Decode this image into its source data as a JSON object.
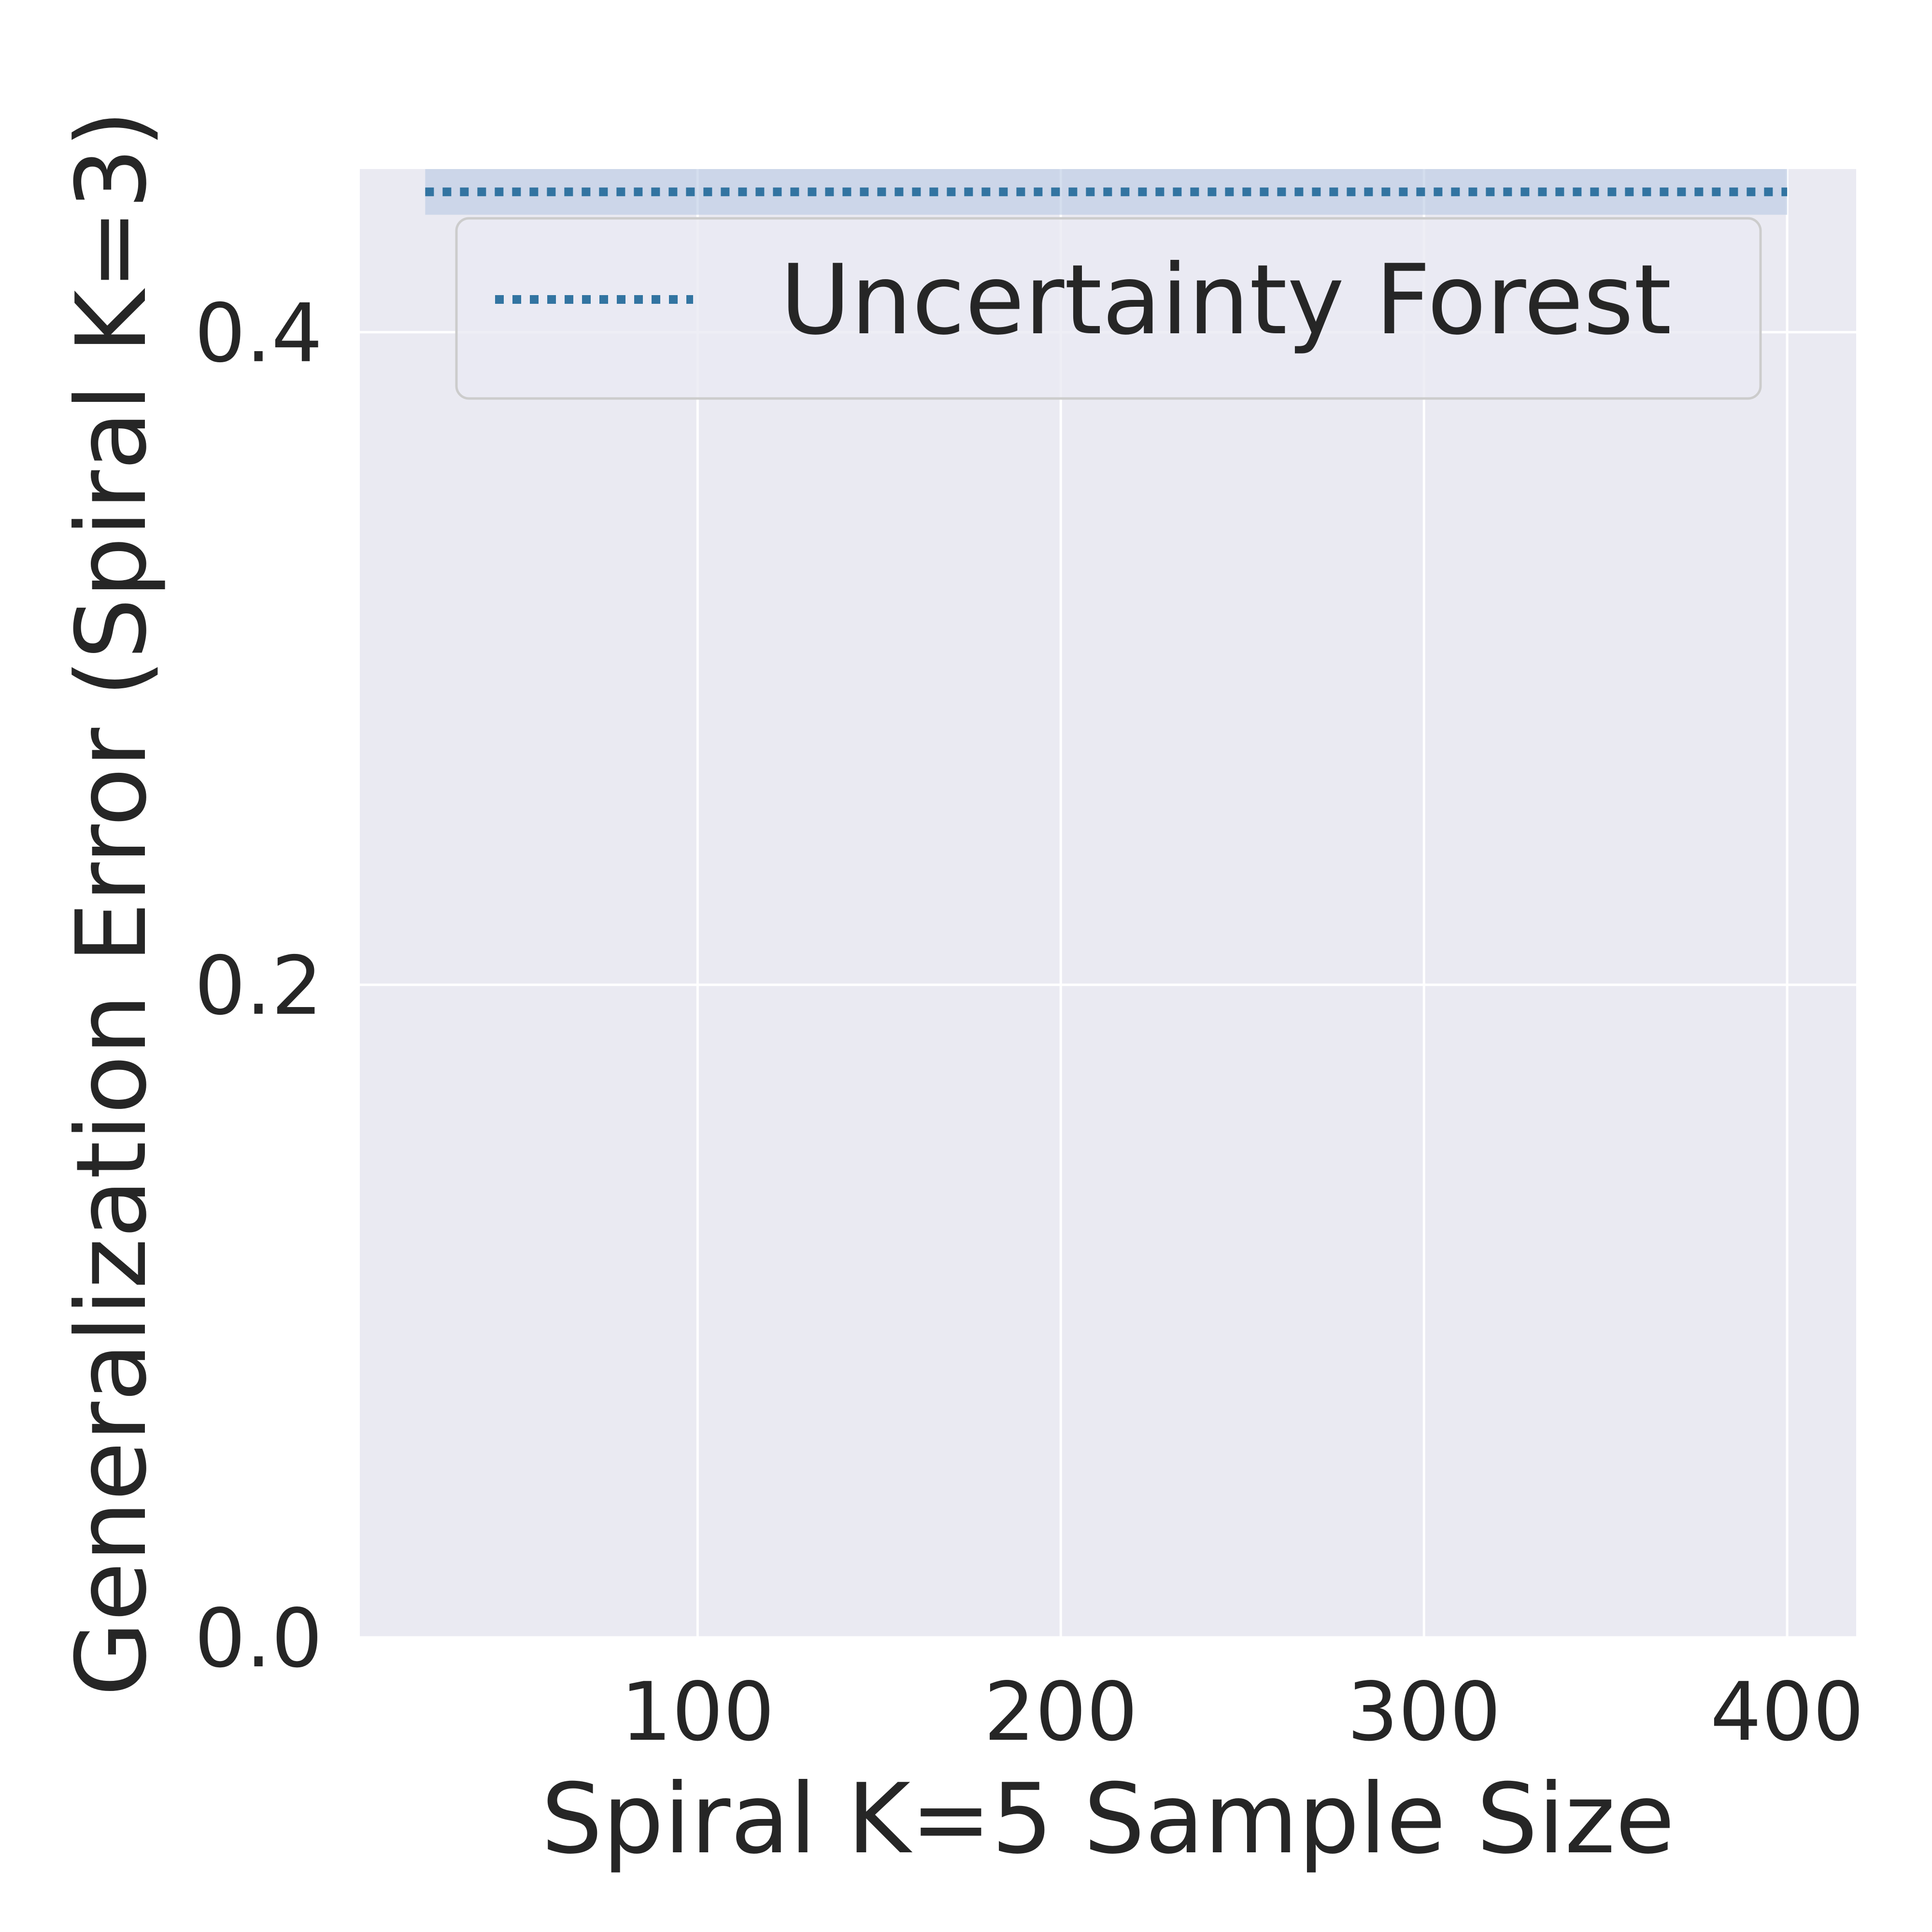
{
  "chart_data": {
    "type": "line",
    "xlabel": "Spiral K=5 Sample Size",
    "ylabel": "Generalization Error (Spiral K=3)",
    "xlim": [
      7,
      419
    ],
    "ylim": [
      0,
      0.45
    ],
    "x_ticks": [
      100,
      200,
      300,
      400
    ],
    "x_tick_labels": [
      "100",
      "200",
      "300",
      "400"
    ],
    "y_ticks": [
      0.0,
      0.2,
      0.4
    ],
    "y_tick_labels": [
      "0.0",
      "0.2",
      "0.4"
    ],
    "grid": true,
    "legend_position": "upper-right",
    "series": [
      {
        "name": "Uncertainty Forest",
        "line_style": "dotted",
        "color": "#3274a1",
        "band_color": "#b7c8e2",
        "x": [
          25,
          400
        ],
        "y": [
          0.443,
          0.443
        ],
        "lower": [
          0.436,
          0.436
        ],
        "upper": [
          0.45,
          0.45
        ]
      }
    ]
  },
  "colors": {
    "plot_background": "#eaeaf2",
    "grid": "#ffffff",
    "text": "#262626"
  }
}
